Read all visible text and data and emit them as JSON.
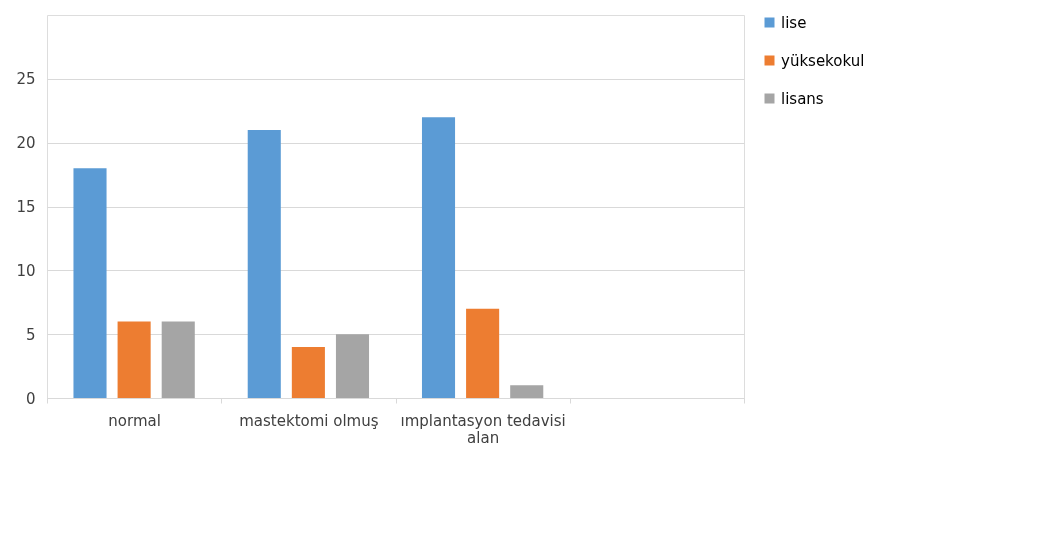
{
  "chart_data": {
    "type": "bar",
    "categories": [
      "normal",
      "mastektomi olmuş",
      "ımplantasyon tedavisi alan",
      null
    ],
    "series": [
      {
        "name": "lise",
        "color": "#5b9bd5",
        "values": [
          18,
          21,
          22,
          null
        ]
      },
      {
        "name": "yüksekokul",
        "color": "#ed7d31",
        "values": [
          6,
          4,
          7,
          null
        ]
      },
      {
        "name": "lisans",
        "color": "#a5a5a5",
        "values": [
          6,
          5,
          1,
          null
        ]
      }
    ],
    "ylim": [
      0,
      30
    ],
    "yticks": [
      0,
      5,
      10,
      15,
      20,
      25
    ],
    "grid": "y",
    "legend": "right"
  }
}
